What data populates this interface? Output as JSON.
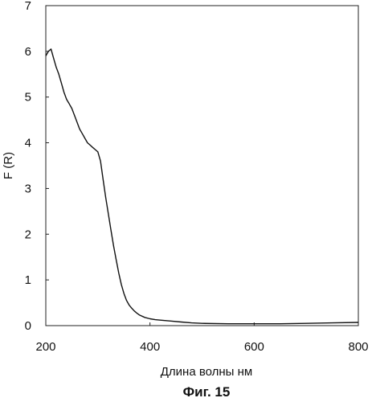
{
  "chart_data": {
    "type": "line",
    "title": "",
    "xlabel": "Длина волны нм",
    "ylabel": "F (R)",
    "xlim": [
      200,
      800
    ],
    "ylim": [
      0,
      7
    ],
    "xticks": [
      200,
      400,
      600,
      800
    ],
    "yticks": [
      0,
      1,
      2,
      3,
      4,
      5,
      6,
      7
    ],
    "grid": false,
    "legend": "none",
    "line_color": "#111111",
    "series": [
      {
        "x": [
          200,
          205,
          210,
          215,
          220,
          225,
          230,
          235,
          240,
          245,
          250,
          255,
          260,
          265,
          270,
          275,
          280,
          285,
          290,
          295,
          300,
          305,
          310,
          315,
          320,
          325,
          330,
          335,
          340,
          345,
          350,
          355,
          360,
          365,
          370,
          375,
          380,
          390,
          400,
          410,
          420,
          440,
          460,
          480,
          500,
          550,
          600,
          650,
          700,
          750,
          800
        ],
        "y": [
          5.9,
          6.0,
          6.05,
          5.85,
          5.65,
          5.5,
          5.3,
          5.1,
          4.95,
          4.85,
          4.75,
          4.6,
          4.45,
          4.3,
          4.2,
          4.1,
          4.0,
          3.95,
          3.9,
          3.85,
          3.8,
          3.6,
          3.2,
          2.8,
          2.45,
          2.1,
          1.75,
          1.45,
          1.15,
          0.9,
          0.7,
          0.55,
          0.45,
          0.38,
          0.32,
          0.27,
          0.23,
          0.18,
          0.15,
          0.13,
          0.12,
          0.1,
          0.08,
          0.06,
          0.05,
          0.04,
          0.04,
          0.04,
          0.05,
          0.06,
          0.07
        ]
      }
    ]
  },
  "caption": "Фиг. 15"
}
